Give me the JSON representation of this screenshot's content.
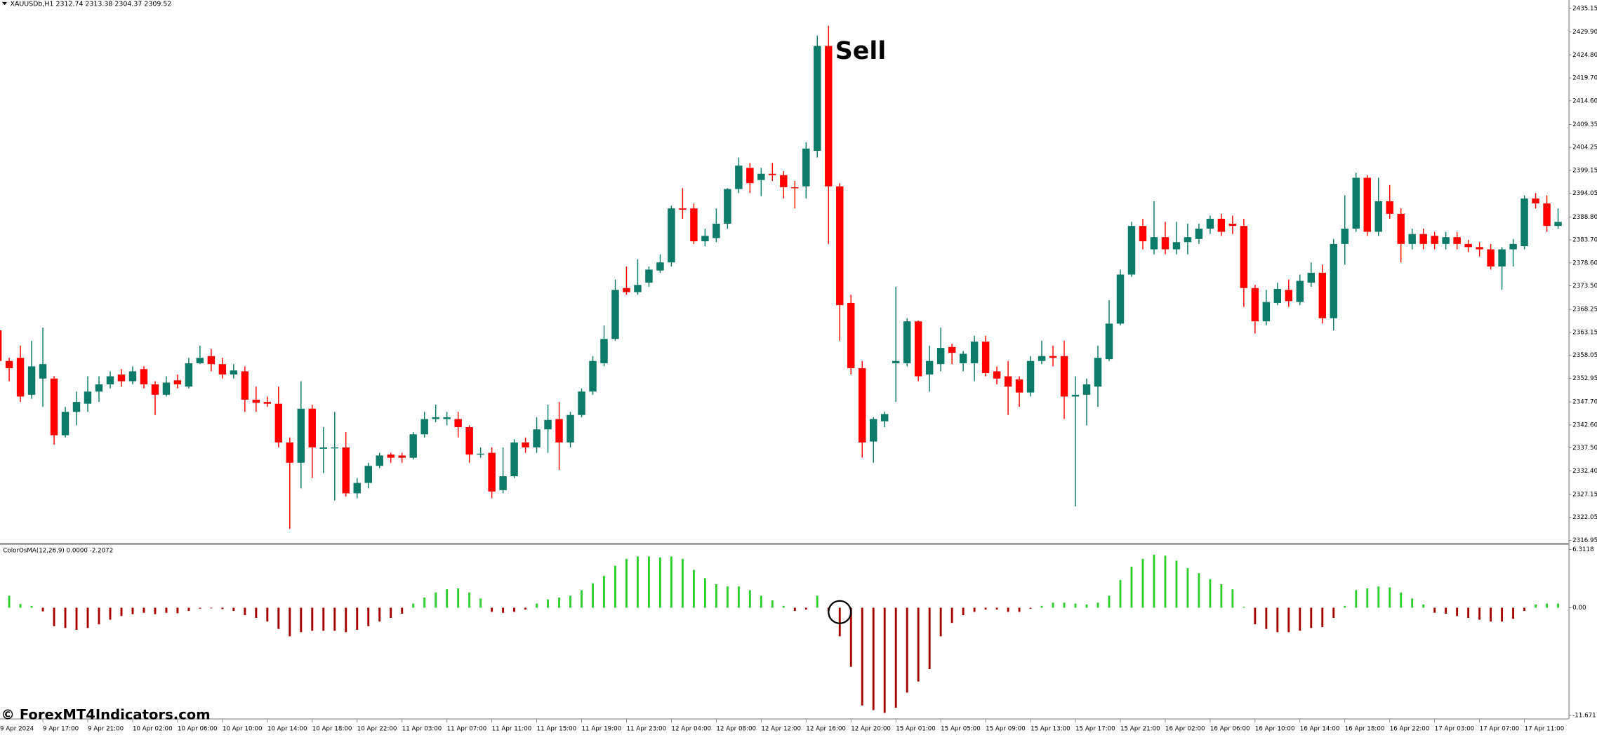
{
  "chart_data": [
    {
      "type": "candlestick",
      "title": "XAUUSDb,H1  2312.74 2313.38 2304.37 2309.52",
      "annotation": "Sell",
      "up_color": "#0b7a66",
      "down_color": "#ff0000",
      "ylim": [
        2316.5,
        2437.0
      ],
      "yticks": [
        2435.15,
        {
          "value": 2429.9,
          "label": "2429.90"
        },
        {
          "value": 2424.8,
          "label": "2424.80"
        },
        {
          "value": 2419.7,
          "label": "2419.70"
        },
        {
          "value": 2414.6,
          "label": "2414.60"
        },
        2409.35,
        2404.25,
        2399.15,
        2394.05,
        {
          "value": 2388.8,
          "label": "2388.80"
        },
        {
          "value": 2383.7,
          "label": "2383.70"
        },
        {
          "value": 2378.6,
          "label": "2378.60"
        },
        {
          "value": 2373.5,
          "label": "2373.50"
        },
        2368.25,
        2363.15,
        2358.05,
        2352.95,
        {
          "value": 2347.7,
          "label": "2347.70"
        },
        {
          "value": 2342.6,
          "label": "2342.60"
        },
        {
          "value": 2337.5,
          "label": "2337.50"
        },
        {
          "value": 2332.4,
          "label": "2332.40"
        },
        2327.15,
        2322.05,
        2316.95
      ],
      "categories": [
        "9 Apr 2024",
        null,
        null,
        null,
        "9 Apr 17:00",
        null,
        null,
        null,
        "9 Apr 21:00",
        null,
        null,
        null,
        "10 Apr 02:00",
        null,
        null,
        null,
        "10 Apr 06:00",
        null,
        null,
        null,
        "10 Apr 10:00",
        null,
        null,
        null,
        "10 Apr 14:00",
        null,
        null,
        null,
        "10 Apr 18:00",
        null,
        null,
        null,
        "10 Apr 22:00",
        null,
        null,
        null,
        "11 Apr 03:00",
        null,
        null,
        null,
        "11 Apr 07:00",
        null,
        null,
        null,
        "11 Apr 11:00",
        null,
        null,
        null,
        "11 Apr 15:00",
        null,
        null,
        null,
        "11 Apr 19:00",
        null,
        null,
        null,
        "11 Apr 23:00",
        null,
        null,
        null,
        "12 Apr 04:00",
        null,
        null,
        null,
        "12 Apr 08:00",
        null,
        null,
        null,
        "12 Apr 12:00",
        null,
        null,
        null,
        "12 Apr 16:00",
        null,
        null,
        null,
        "12 Apr 20:00",
        null,
        null,
        null,
        "15 Apr 01:00",
        null,
        null,
        null,
        "15 Apr 05:00",
        null,
        null,
        null,
        "15 Apr 09:00",
        null,
        null,
        null,
        "15 Apr 13:00",
        null,
        null,
        null,
        "15 Apr 17:00",
        null,
        null,
        null,
        "15 Apr 21:00",
        null,
        null,
        null,
        "16 Apr 02:00",
        null,
        null,
        null,
        "16 Apr 06:00",
        null,
        null,
        null,
        "16 Apr 10:00",
        null,
        null,
        null,
        "16 Apr 14:00",
        null,
        null,
        null,
        "16 Apr 18:00",
        null,
        null,
        null,
        "16 Apr 22:00",
        null,
        null,
        null,
        "17 Apr 03:00",
        null,
        null,
        null,
        "17 Apr 07:00",
        null,
        null,
        null,
        "17 Apr 11:00",
        null,
        null,
        null
      ],
      "open": [
        2363.6,
        2356.8,
        2357.5,
        2349.3,
        2352.9,
        2352.9,
        2340.3,
        2345.5,
        2347.3,
        2350.0,
        2351.6,
        2353.8,
        2352.3,
        2355.0,
        2351.6,
        2349.3,
        2352.5,
        2351.1,
        2356.3,
        2357.9,
        2356.1,
        2353.8,
        2354.5,
        2348.2,
        2347.7,
        2347.3,
        2338.7,
        2334.2,
        2346.2,
        2337.3,
        2337.6,
        2337.6,
        2327.4,
        2329.7,
        2333.5,
        2336.0,
        2335.8,
        2335.3,
        2340.5,
        2343.9,
        2343.9,
        2343.9,
        2342.1,
        2336.0,
        2336.4,
        2328.1,
        2331.2,
        2338.7,
        2337.6,
        2341.6,
        2343.9,
        2338.7,
        2344.8,
        2350.0,
        2356.3,
        2361.7,
        2373.0,
        2372.1,
        2374.2,
        2376.9,
        2378.7,
        2390.7,
        2390.7,
        2383.4,
        2384.1,
        2387.3,
        2395.0,
        2399.7,
        2397.0,
        2398.4,
        2398.1,
        2395.4,
        2395.6,
        2403.5,
        2426.8,
        2395.6,
        2369.7,
        2355.2,
        2338.9,
        2343.4,
        2356.3,
        2356.3,
        2365.6,
        2353.8,
        2356.1,
        2359.9,
        2356.3,
        2356.3,
        2361.1,
        2354.5,
        2353.4,
        2352.7,
        2349.8,
        2356.8,
        2357.9,
        2357.9,
        2348.9,
        2349.3,
        2351.1,
        2357.2,
        2365.1,
        2376.0,
        2386.8,
        2381.6,
        2384.3,
        2381.6,
        2383.2,
        2383.9,
        2386.2,
        2388.4,
        2387.3,
        2386.8,
        2373.0,
        2365.6,
        2369.7,
        2372.6,
        2369.9,
        2374.2,
        2376.4,
        2366.3,
        2382.8,
        2386.2,
        2397.5,
        2385.5,
        2392.3,
        2389.5,
        2382.8,
        2385.0,
        2384.6,
        2382.8,
        2384.3,
        2382.8,
        2382.1,
        2381.6,
        2377.8,
        2381.6,
        2382.3,
        2392.9,
        2391.8,
        2386.8
      ],
      "high": [
        2364.2,
        2357.5,
        2360.2,
        2361.3,
        2364.2,
        2353.4,
        2346.6,
        2350.0,
        2353.4,
        2353.4,
        2354.5,
        2355.0,
        2355.6,
        2355.6,
        2352.3,
        2353.4,
        2353.8,
        2357.5,
        2360.2,
        2359.5,
        2357.5,
        2356.1,
        2355.6,
        2351.1,
        2348.9,
        2351.1,
        2339.8,
        2352.3,
        2347.1,
        2342.1,
        2345.5,
        2341.0,
        2330.8,
        2334.2,
        2336.4,
        2336.4,
        2336.4,
        2341.0,
        2345.5,
        2347.1,
        2345.5,
        2345.5,
        2342.5,
        2337.6,
        2337.6,
        2337.6,
        2339.4,
        2339.8,
        2344.3,
        2347.1,
        2347.7,
        2345.5,
        2350.7,
        2357.9,
        2364.7,
        2374.9,
        2377.8,
        2379.4,
        2377.8,
        2380.5,
        2391.3,
        2395.2,
        2391.8,
        2386.2,
        2390.7,
        2395.2,
        2402.0,
        2400.8,
        2399.7,
        2400.8,
        2399.0,
        2396.8,
        2405.4,
        2429.1,
        2431.3,
        2396.3,
        2371.5,
        2356.8,
        2344.3,
        2345.5,
        2373.3,
        2366.3,
        2365.8,
        2360.2,
        2364.2,
        2360.6,
        2359.0,
        2362.4,
        2362.4,
        2355.6,
        2356.8,
        2353.4,
        2357.9,
        2361.3,
        2360.2,
        2361.3,
        2353.4,
        2352.9,
        2360.2,
        2370.3,
        2377.1,
        2387.7,
        2388.4,
        2392.3,
        2387.7,
        2387.7,
        2387.3,
        2387.3,
        2389.1,
        2389.5,
        2389.1,
        2388.4,
        2373.7,
        2372.6,
        2374.2,
        2374.9,
        2376.0,
        2378.7,
        2378.2,
        2383.9,
        2393.6,
        2398.6,
        2398.1,
        2397.5,
        2395.9,
        2390.7,
        2386.2,
        2386.2,
        2385.5,
        2385.5,
        2385.5,
        2383.7,
        2383.2,
        2382.8,
        2382.1,
        2383.9,
        2393.6,
        2394.1,
        2393.6,
        2390.7
      ],
      "low": [
        2355.6,
        2352.3,
        2347.7,
        2348.4,
        2346.6,
        2338.2,
        2339.8,
        2342.5,
        2345.5,
        2347.7,
        2350.7,
        2351.1,
        2351.6,
        2350.7,
        2344.8,
        2348.9,
        2350.7,
        2350.7,
        2356.1,
        2354.5,
        2352.9,
        2352.9,
        2345.5,
        2345.5,
        2346.6,
        2337.6,
        2319.5,
        2328.5,
        2330.8,
        2331.9,
        2325.8,
        2326.7,
        2326.3,
        2328.5,
        2333.0,
        2334.2,
        2334.2,
        2334.9,
        2339.8,
        2343.2,
        2342.5,
        2339.8,
        2334.2,
        2335.3,
        2326.3,
        2327.4,
        2330.8,
        2336.4,
        2336.4,
        2336.4,
        2332.6,
        2337.6,
        2344.3,
        2349.3,
        2355.6,
        2361.3,
        2371.5,
        2371.5,
        2373.3,
        2376.4,
        2377.8,
        2388.4,
        2382.8,
        2382.3,
        2383.2,
        2386.2,
        2394.1,
        2394.1,
        2393.4,
        2396.8,
        2392.9,
        2390.7,
        2392.9,
        2402.0,
        2382.8,
        2361.3,
        2353.8,
        2335.3,
        2334.2,
        2342.1,
        2347.7,
        2355.6,
        2352.3,
        2350.0,
        2354.5,
        2356.1,
        2354.5,
        2352.3,
        2353.4,
        2351.6,
        2344.8,
        2346.6,
        2348.9,
        2356.1,
        2355.6,
        2343.9,
        2324.5,
        2342.5,
        2346.6,
        2356.8,
        2364.7,
        2375.5,
        2381.6,
        2380.5,
        2380.5,
        2380.5,
        2380.5,
        2382.8,
        2385.0,
        2384.6,
        2385.0,
        2368.8,
        2362.9,
        2364.7,
        2369.2,
        2368.8,
        2369.2,
        2373.3,
        2365.1,
        2363.6,
        2378.2,
        2385.5,
        2384.6,
        2384.6,
        2388.4,
        2378.7,
        2381.6,
        2381.6,
        2381.6,
        2381.6,
        2381.6,
        2381.0,
        2380.0,
        2377.1,
        2372.6,
        2377.8,
        2381.6,
        2390.7,
        2385.5,
        2386.2
      ],
      "close": [
        2356.8,
        2355.2,
        2348.9,
        2355.6,
        2356.1,
        2340.3,
        2345.5,
        2347.7,
        2350.0,
        2351.6,
        2353.4,
        2352.3,
        2354.5,
        2351.6,
        2349.3,
        2352.0,
        2351.6,
        2356.3,
        2357.5,
        2356.1,
        2353.8,
        2354.7,
        2348.2,
        2347.5,
        2347.3,
        2338.7,
        2334.2,
        2346.2,
        2337.6,
        2337.6,
        2337.6,
        2327.4,
        2329.7,
        2333.5,
        2335.8,
        2335.3,
        2335.3,
        2340.5,
        2343.9,
        2344.3,
        2344.3,
        2342.1,
        2336.0,
        2336.2,
        2327.8,
        2331.2,
        2338.7,
        2337.6,
        2341.6,
        2343.7,
        2338.7,
        2344.8,
        2350.0,
        2356.8,
        2361.7,
        2372.6,
        2372.1,
        2373.7,
        2377.1,
        2378.7,
        2390.7,
        2390.4,
        2383.4,
        2384.6,
        2387.3,
        2395.0,
        2400.2,
        2396.3,
        2398.4,
        2398.1,
        2395.4,
        2395.2,
        2404.0,
        2426.8,
        2395.6,
        2369.2,
        2355.2,
        2338.7,
        2343.9,
        2345.0,
        2356.8,
        2365.6,
        2353.4,
        2356.8,
        2359.7,
        2358.6,
        2358.4,
        2361.1,
        2354.1,
        2352.9,
        2351.1,
        2349.8,
        2356.8,
        2357.9,
        2357.5,
        2348.9,
        2349.3,
        2351.6,
        2357.5,
        2365.1,
        2376.0,
        2386.8,
        2383.4,
        2384.3,
        2381.6,
        2383.2,
        2384.3,
        2386.2,
        2388.4,
        2385.5,
        2386.8,
        2373.0,
        2365.6,
        2369.9,
        2372.8,
        2370.1,
        2374.6,
        2376.4,
        2366.3,
        2382.8,
        2386.2,
        2397.5,
        2385.5,
        2392.3,
        2389.5,
        2382.8,
        2385.0,
        2382.8,
        2382.8,
        2384.3,
        2382.8,
        2382.1,
        2381.6,
        2377.8,
        2381.6,
        2382.8,
        2392.9,
        2391.8,
        2386.8,
        2387.7
      ]
    },
    {
      "type": "histogram-bar",
      "title": "ColorOsMA(12,26,9) 0.0000 -2.2072",
      "up_color": "#32cd32",
      "down_color": "#a50000",
      "ylim": [
        -11.6717,
        6.3118
      ],
      "yticks": [
        6.3118,
        {
          "value": 0,
          "label": "0.00"
        },
        -11.6717
      ],
      "values": [
        1.3,
        1.3,
        0.4,
        0.2,
        -0.4,
        -2.0,
        -2.2,
        -2.4,
        -2.2,
        -1.8,
        -1.3,
        -0.9,
        -0.7,
        -0.55,
        -0.7,
        -0.55,
        -0.6,
        -0.35,
        -0.1,
        -0.05,
        -0.15,
        -0.35,
        -0.8,
        -1.1,
        -1.5,
        -2.3,
        -3.1,
        -2.65,
        -2.5,
        -2.5,
        -2.5,
        -2.65,
        -2.4,
        -2.0,
        -1.5,
        -1.1,
        -0.65,
        0.45,
        1.1,
        1.65,
        2.0,
        2.1,
        1.65,
        1.0,
        -0.45,
        -0.55,
        -0.45,
        -0.2,
        0.45,
        0.9,
        1.1,
        1.3,
        1.9,
        2.65,
        3.45,
        4.55,
        5.3,
        5.55,
        5.55,
        5.45,
        5.55,
        5.3,
        4.1,
        3.2,
        2.55,
        2.3,
        2.3,
        1.9,
        1.3,
        0.8,
        0.2,
        -0.35,
        -0.2,
        1.3,
        -0.35,
        -3.1,
        -6.4,
        -10.6,
        -11.1,
        -11.4,
        -10.85,
        -9.2,
        -8.0,
        -6.65,
        -3.1,
        -1.65,
        -0.8,
        -0.45,
        -0.2,
        -0.2,
        -0.45,
        -0.45,
        -0.1,
        0.2,
        0.55,
        0.55,
        0.45,
        0.35,
        0.55,
        1.3,
        3.0,
        4.45,
        5.3,
        5.75,
        5.65,
        5.1,
        4.3,
        3.75,
        3.1,
        2.55,
        2.0,
        0.1,
        -1.8,
        -2.3,
        -2.65,
        -2.65,
        -2.5,
        -2.2,
        -2.1,
        -1.1,
        0.2,
        1.9,
        2.1,
        2.3,
        2.2,
        1.65,
        1.0,
        0.35,
        -0.55,
        -0.65,
        -0.9,
        -1.1,
        -1.3,
        -1.5,
        -1.5,
        -1.2,
        -0.35,
        0.35,
        0.45,
        0.45
      ]
    }
  ],
  "watermark": "© ForexMT4Indicators.com"
}
